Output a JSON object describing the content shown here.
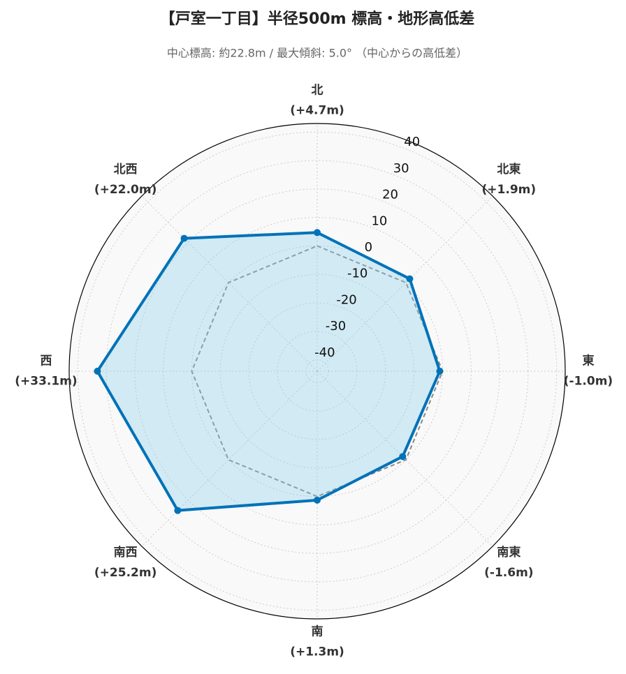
{
  "chart_data": {
    "type": "radar",
    "title": "【戸室一丁目】半径500m 標高・地形高低差",
    "subtitle": "中心標高: 約22.8m / 最大傾斜: 5.0° （中心からの高低差）",
    "categories": [
      "北",
      "北東",
      "東",
      "南東",
      "南",
      "南西",
      "西",
      "北西"
    ],
    "values": [
      4.7,
      1.9,
      -1.0,
      -1.6,
      1.3,
      25.2,
      33.1,
      22.0
    ],
    "value_labels": [
      "(+4.7m)",
      "(+1.9m)",
      "(-1.0m)",
      "(-1.6m)",
      "(+1.3m)",
      "(+25.2m)",
      "(+33.1m)",
      "(+22.0m)"
    ],
    "color": "#0072b8",
    "fill": "#87ceeb",
    "ylim": [
      -44,
      43
    ],
    "yticks": [
      -40,
      -30,
      -20,
      -10,
      0,
      10,
      20,
      30,
      40
    ],
    "reference_line": {
      "value": 0,
      "color": "#888888",
      "style": "dashed"
    },
    "grid": true
  }
}
